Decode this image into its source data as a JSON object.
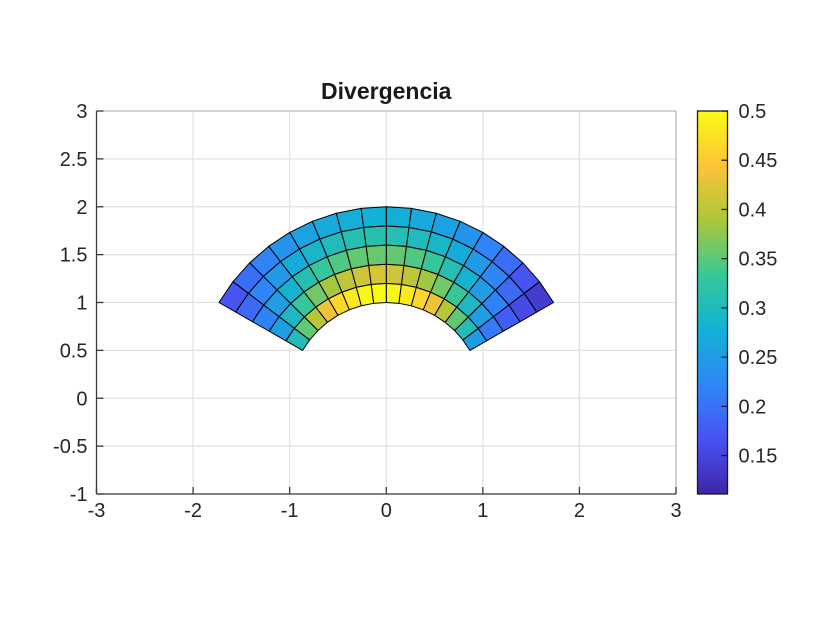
{
  "title": "Divergencia",
  "axes": {
    "xlim": [
      -3,
      3
    ],
    "ylim": [
      -1,
      3
    ],
    "xtick_values": [
      -3,
      -2,
      -1,
      0,
      1,
      2,
      3
    ],
    "xtick_labels": [
      "-3",
      "-2",
      "-1",
      "0",
      "1",
      "2",
      "3"
    ],
    "ytick_values": [
      -1,
      -0.5,
      0,
      0.5,
      1,
      1.5,
      2,
      2.5,
      3
    ],
    "ytick_labels": [
      "-1",
      "-0.5",
      "0",
      "0.5",
      "1",
      "1.5",
      "2",
      "2.5",
      "3"
    ],
    "grid": true
  },
  "colorbar": {
    "location": "right",
    "clim": [
      0.111,
      0.5
    ],
    "tick_values": [
      0.5,
      0.45,
      0.4,
      0.35,
      0.3,
      0.25,
      0.2,
      0.15
    ],
    "tick_labels": [
      "0.5",
      "0.45",
      "0.4",
      "0.35",
      "0.3",
      "0.25",
      "0.2",
      "0.15"
    ],
    "colormap_name": "parula",
    "colormap_anchors": [
      "#3e26a8",
      "#4852f4",
      "#2e87f7",
      "#12b1d6",
      "#37c897",
      "#abc739",
      "#fec338",
      "#f9fb15"
    ]
  },
  "colors": {
    "background": "#ffffff",
    "grid": "#e2e2e2",
    "axis_dark": "#3a3a3a",
    "axis_light": "#b0b0b0",
    "tick_text": "#262626",
    "cell_edge": "#000000"
  },
  "chart_data": {
    "type": "heatmap",
    "title": "Divergencia",
    "legend_position": "colorbar-right",
    "grid": true,
    "xlim": [
      -3,
      3
    ],
    "ylim": [
      -1,
      3
    ],
    "mesh": {
      "shape": "annular-sector",
      "r_inner": 1.0,
      "r_outer": 2.0,
      "n_radial": 5,
      "theta_start_deg": 30,
      "theta_end_deg": 150,
      "n_angular": 16
    },
    "ring_inner_radii": [
      1.0,
      1.2,
      1.4,
      1.6,
      1.8
    ],
    "cell_theta_start_deg": [
      30,
      37.5,
      45,
      52.5,
      60,
      67.5,
      75,
      82.5,
      90,
      97.5,
      105,
      112.5,
      120,
      127.5,
      135,
      142.5
    ],
    "values": [
      [
        0.25,
        0.3044,
        0.3536,
        0.3967,
        0.433,
        0.4619,
        0.483,
        0.4957,
        0.5,
        0.4957,
        0.483,
        0.4619,
        0.433,
        0.3967,
        0.3536,
        0.3044
      ],
      [
        0.2083,
        0.2537,
        0.2946,
        0.3306,
        0.3608,
        0.385,
        0.4025,
        0.4131,
        0.4167,
        0.4131,
        0.4025,
        0.385,
        0.3608,
        0.3306,
        0.2946,
        0.2537
      ],
      [
        0.1786,
        0.2174,
        0.2525,
        0.2834,
        0.3093,
        0.33,
        0.345,
        0.3541,
        0.3571,
        0.3541,
        0.345,
        0.33,
        0.3093,
        0.2834,
        0.2525,
        0.2174
      ],
      [
        0.1563,
        0.1903,
        0.221,
        0.248,
        0.2706,
        0.2887,
        0.3018,
        0.3098,
        0.3125,
        0.3098,
        0.3018,
        0.2887,
        0.2706,
        0.248,
        0.221,
        0.1903
      ],
      [
        0.1389,
        0.1691,
        0.1964,
        0.2204,
        0.2406,
        0.2566,
        0.2683,
        0.2754,
        0.2778,
        0.2754,
        0.2683,
        0.2566,
        0.2406,
        0.2204,
        0.1964,
        0.1691
      ]
    ]
  }
}
